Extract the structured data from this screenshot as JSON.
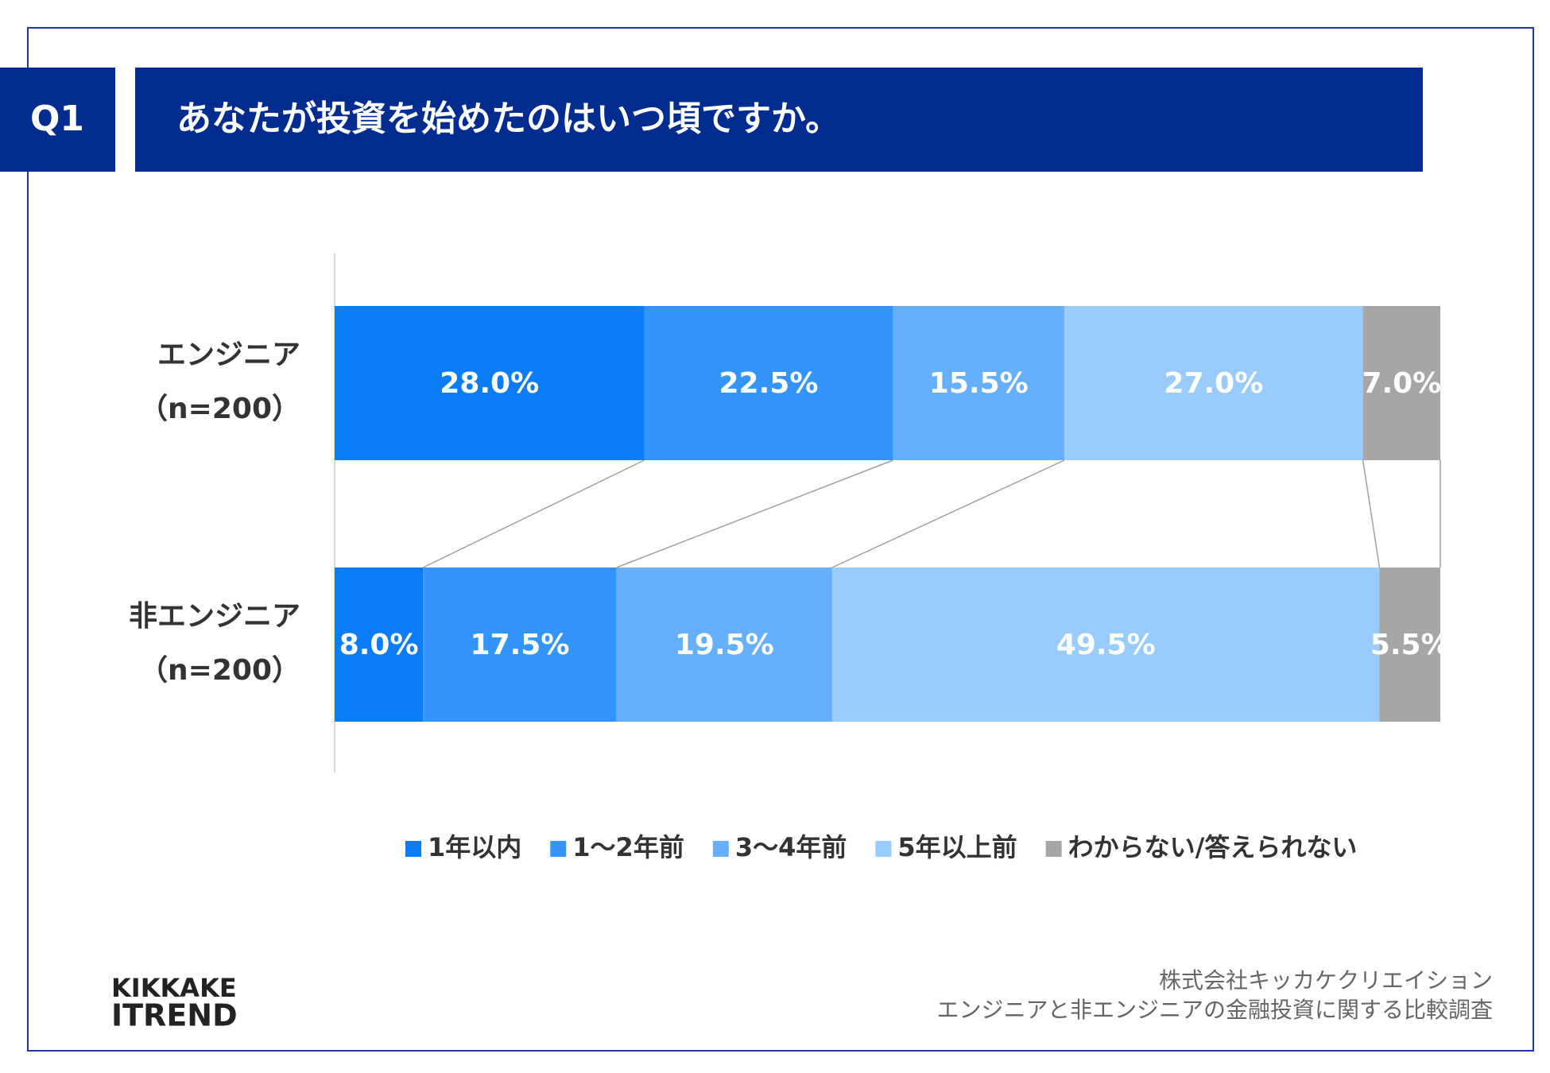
{
  "chart_data": {
    "type": "stacked-bar-horizontal",
    "question_number": "Q1",
    "title": "あなたが投資を始めたのはいつ頃ですか。",
    "categories": [
      [
        "エンジニア",
        "（n=200）"
      ],
      [
        "非エンジニア",
        "（n=200）"
      ]
    ],
    "xlim": [
      0,
      100
    ],
    "series": [
      {
        "name": "1年以内",
        "color": "#0a7cf5",
        "values": [
          28.0,
          8.0
        ],
        "value_labels": [
          "28.0%",
          "8.0%"
        ]
      },
      {
        "name": "1～2年前",
        "color": "#3395fb",
        "values": [
          22.5,
          17.5
        ],
        "value_labels": [
          "22.5%",
          "17.5%"
        ]
      },
      {
        "name": "3～4年前",
        "color": "#66b0fb",
        "values": [
          15.5,
          19.5
        ],
        "value_labels": [
          "15.5%",
          "19.5%"
        ]
      },
      {
        "name": "5年以上前",
        "color": "#99cbfc",
        "values": [
          27.0,
          49.5
        ],
        "value_labels": [
          "27.0%",
          "49.5%"
        ]
      },
      {
        "name": "わからない/答えられない",
        "color": "#a6a6a6",
        "values": [
          7.0,
          5.5
        ],
        "value_labels": [
          "7.0%",
          "5.5%"
        ]
      }
    ],
    "legend": "bottom"
  },
  "logo": {
    "line1": "KIKKAKE",
    "line2": "ITREND"
  },
  "footer": {
    "company": "株式会社キッカケクリエイション",
    "survey": "エンジニアと非エンジニアの金融投資に関する比較調査"
  }
}
